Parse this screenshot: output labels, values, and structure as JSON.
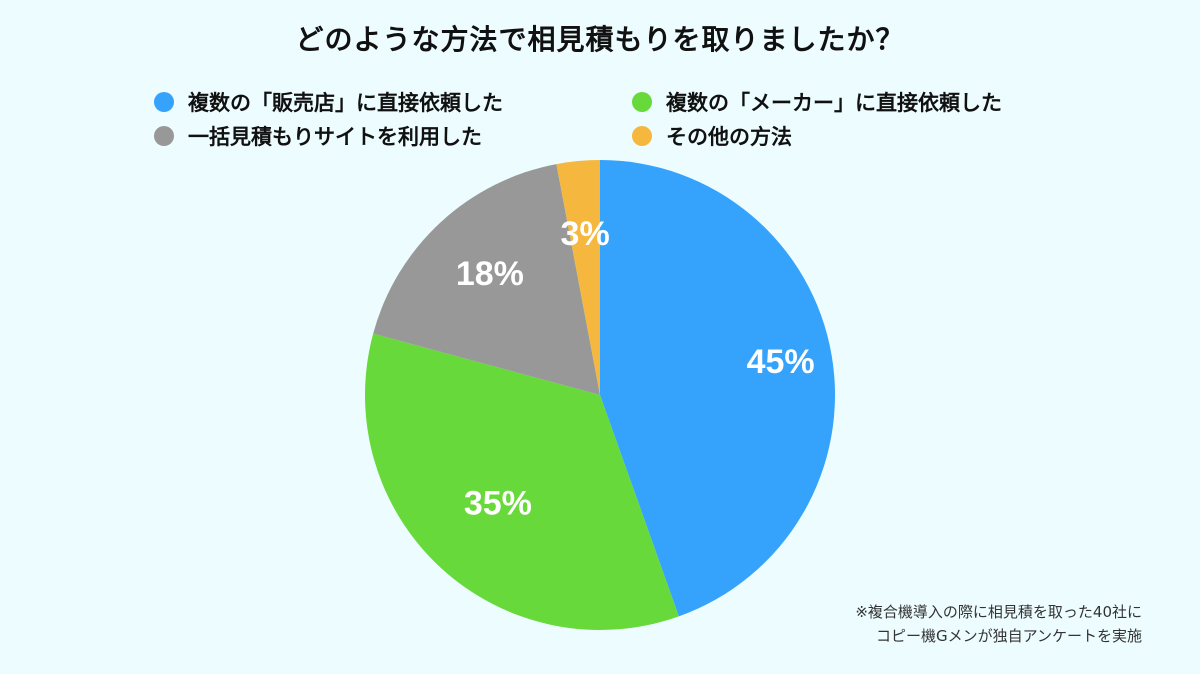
{
  "chart_data": {
    "type": "pie",
    "title": "どのような方法で相見積もりを取りましたか？",
    "categories": [
      "複数の「販売店」に直接依頼した",
      "複数の「メーカー」に直接依頼した",
      "一括見積もりサイトを利用した",
      "その他の方法"
    ],
    "values": [
      45,
      35,
      18,
      3
    ],
    "data_labels": [
      "45%",
      "35%",
      "18%",
      "3%"
    ],
    "colors": [
      "#35a2fb",
      "#68d93a",
      "#989898",
      "#f5b73d"
    ],
    "legend_position": "top",
    "slice_order": "clockwise-from-top"
  },
  "footnote": {
    "line1": "※複合機導入の際に相見積を取った40社に",
    "line2": "コピー機Gメンが独自アンケートを実施"
  }
}
